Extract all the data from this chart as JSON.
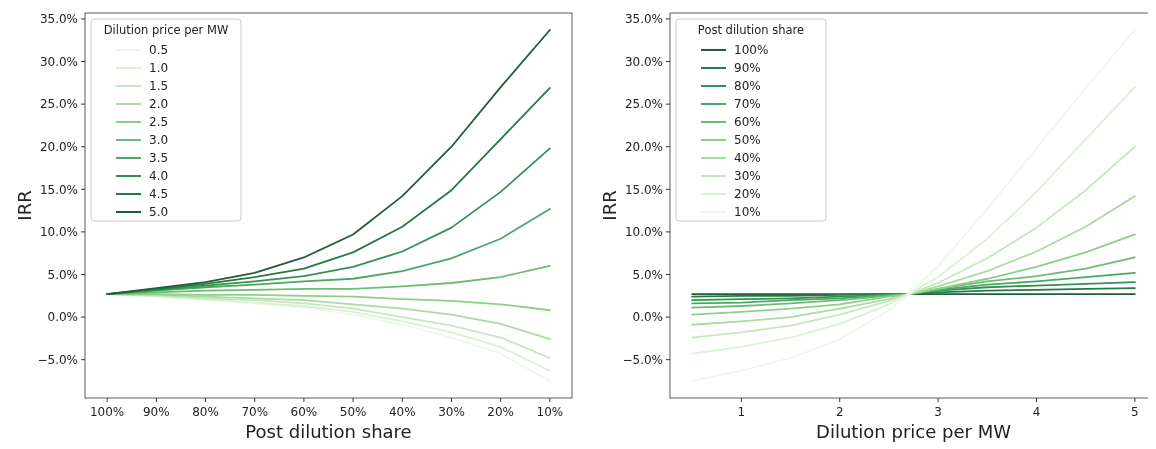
{
  "chart_data": [
    {
      "type": "line",
      "xlabel": "Post dilution share",
      "ylabel": "IRR",
      "legend": "top left",
      "legend_title": "Dilution price per MW",
      "grid": false,
      "categories": [
        "100%",
        "90%",
        "80%",
        "70%",
        "60%",
        "50%",
        "40%",
        "30%",
        "20%",
        "10%"
      ],
      "ylim": [
        -9.5,
        35.7
      ],
      "yticks": [
        {
          "value": -5,
          "label": "−5.0%"
        },
        {
          "value": 0,
          "label": "0.0%"
        },
        {
          "value": 5,
          "label": "5.0%"
        },
        {
          "value": 10,
          "label": "10.0%"
        },
        {
          "value": 15,
          "label": "15.0%"
        },
        {
          "value": 20,
          "label": "20.0%"
        },
        {
          "value": 25,
          "label": "25.0%"
        },
        {
          "value": 30,
          "label": "30.0%"
        },
        {
          "value": 35,
          "label": "35.0%"
        }
      ],
      "series": [
        {
          "name": "0.5",
          "color": "#edf8ea",
          "values": [
            2.7,
            2.4,
            2.0,
            1.6,
            1.1,
            0.3,
            -0.9,
            -2.4,
            -4.3,
            -7.5
          ]
        },
        {
          "name": "1.0",
          "color": "#dbf1d5",
          "values": [
            2.7,
            2.5,
            2.1,
            1.7,
            1.3,
            0.6,
            -0.5,
            -1.8,
            -3.5,
            -6.3
          ]
        },
        {
          "name": "1.5",
          "color": "#c4e8bd",
          "values": [
            2.7,
            2.5,
            2.2,
            2.0,
            1.6,
            1.0,
            0.0,
            -1.0,
            -2.4,
            -4.8
          ]
        },
        {
          "name": "2.0",
          "color": "#a8dca2",
          "values": [
            2.7,
            2.6,
            2.4,
            2.2,
            2.0,
            1.5,
            1.0,
            0.3,
            -0.8,
            -2.6
          ]
        },
        {
          "name": "2.5",
          "color": "#8ccf89",
          "values": [
            2.7,
            2.7,
            2.6,
            2.6,
            2.5,
            2.4,
            2.1,
            1.9,
            1.5,
            0.8
          ]
        },
        {
          "name": "3.0",
          "color": "#6bbd73",
          "values": [
            2.7,
            2.9,
            3.1,
            3.2,
            3.3,
            3.3,
            3.6,
            4.0,
            4.7,
            6.0
          ]
        },
        {
          "name": "3.5",
          "color": "#4aa862",
          "values": [
            2.7,
            3.1,
            3.5,
            3.8,
            4.2,
            4.5,
            5.4,
            6.9,
            9.2,
            12.7
          ]
        },
        {
          "name": "4.0",
          "color": "#339251",
          "values": [
            2.7,
            3.2,
            3.7,
            4.2,
            4.8,
            5.9,
            7.7,
            10.5,
            14.7,
            19.8
          ]
        },
        {
          "name": "4.5",
          "color": "#267a43",
          "values": [
            2.7,
            3.3,
            3.9,
            4.7,
            5.7,
            7.6,
            10.6,
            14.9,
            20.9,
            26.9
          ]
        },
        {
          "name": "5.0",
          "color": "#235c38",
          "values": [
            2.7,
            3.4,
            4.1,
            5.2,
            7.0,
            9.7,
            14.2,
            20.0,
            27.0,
            33.7
          ]
        }
      ]
    },
    {
      "type": "line",
      "xlabel": "Dilution price per MW",
      "ylabel": "IRR",
      "legend": "top left",
      "legend_title": "Post dilution share",
      "grid": false,
      "x": [
        0.5,
        1,
        1.5,
        2,
        2.5,
        2.7,
        3,
        3.5,
        4,
        4.5,
        5
      ],
      "xlim": [
        0.275,
        5.225
      ],
      "xticks": [
        1,
        2,
        3,
        4,
        5
      ],
      "ylim": [
        -9.5,
        35.7
      ],
      "yticks": [
        {
          "value": -5,
          "label": "−5.0%"
        },
        {
          "value": 0,
          "label": "0.0%"
        },
        {
          "value": 5,
          "label": "5.0%"
        },
        {
          "value": 10,
          "label": "10.0%"
        },
        {
          "value": 15,
          "label": "15.0%"
        },
        {
          "value": 20,
          "label": "20.0%"
        },
        {
          "value": 25,
          "label": "25.0%"
        },
        {
          "value": 30,
          "label": "30.0%"
        },
        {
          "value": 35,
          "label": "35.0%"
        }
      ],
      "series": [
        {
          "name": "100%",
          "color": "#235c38",
          "values": [
            2.7,
            2.7,
            2.7,
            2.7,
            2.7,
            2.7,
            2.7,
            2.7,
            2.7,
            2.7,
            2.7
          ]
        },
        {
          "name": "90%",
          "color": "#267a43",
          "values": [
            2.4,
            2.5,
            2.5,
            2.6,
            2.7,
            2.7,
            2.9,
            3.1,
            3.2,
            3.3,
            3.4
          ]
        },
        {
          "name": "80%",
          "color": "#339251",
          "values": [
            2.0,
            2.1,
            2.2,
            2.4,
            2.6,
            2.7,
            3.1,
            3.5,
            3.7,
            3.9,
            4.1
          ]
        },
        {
          "name": "70%",
          "color": "#4aa862",
          "values": [
            1.6,
            1.7,
            2.0,
            2.2,
            2.6,
            2.7,
            3.2,
            3.8,
            4.2,
            4.7,
            5.2
          ]
        },
        {
          "name": "60%",
          "color": "#6bbd73",
          "values": [
            1.1,
            1.3,
            1.6,
            2.0,
            2.5,
            2.7,
            3.3,
            4.2,
            4.8,
            5.7,
            7.0
          ]
        },
        {
          "name": "50%",
          "color": "#8ccf89",
          "values": [
            0.3,
            0.6,
            1.0,
            1.5,
            2.4,
            2.7,
            3.3,
            4.5,
            5.9,
            7.6,
            9.7
          ]
        },
        {
          "name": "40%",
          "color": "#a8dca2",
          "values": [
            -0.9,
            -0.5,
            0.0,
            1.0,
            2.1,
            2.7,
            3.6,
            5.4,
            7.7,
            10.6,
            14.2
          ]
        },
        {
          "name": "30%",
          "color": "#c4e8bd",
          "values": [
            -2.4,
            -1.8,
            -1.0,
            0.3,
            1.9,
            2.7,
            4.0,
            6.9,
            10.5,
            14.9,
            20.0
          ]
        },
        {
          "name": "20%",
          "color": "#dbf1d5",
          "values": [
            -4.3,
            -3.5,
            -2.4,
            -0.8,
            1.5,
            2.7,
            4.7,
            9.2,
            14.7,
            20.9,
            27.0
          ]
        },
        {
          "name": "10%",
          "color": "#edf8ea",
          "values": [
            -7.5,
            -6.3,
            -4.8,
            -2.6,
            0.8,
            2.7,
            6.0,
            12.7,
            19.8,
            26.9,
            33.7
          ]
        }
      ]
    }
  ]
}
